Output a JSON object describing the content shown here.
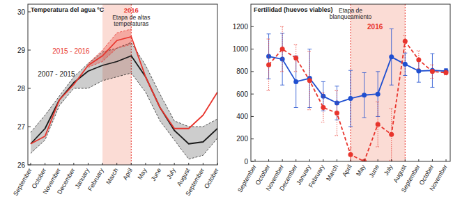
{
  "chart_data": [
    {
      "type": "line",
      "title": "Temperatura del agua ºC",
      "categories": [
        "September",
        "October",
        "November",
        "December",
        "January",
        "February",
        "March",
        "April",
        "May",
        "June",
        "July",
        "August",
        "September",
        "October"
      ],
      "ylim": [
        26,
        30.2
      ],
      "yticks": [
        26,
        27,
        28,
        29,
        30
      ],
      "grid": false,
      "series": [
        {
          "name": "2007 - 2015",
          "color": "#1a1a1a",
          "line_style": "solid",
          "values": [
            26.55,
            26.95,
            27.7,
            28.15,
            28.45,
            28.6,
            28.7,
            28.85,
            28.3,
            27.5,
            26.9,
            26.55,
            26.6,
            26.95
          ],
          "upper": [
            26.85,
            27.3,
            27.8,
            28.3,
            28.65,
            28.95,
            29.05,
            29.2,
            28.6,
            27.85,
            27.15,
            27.0,
            27.0,
            27.2
          ],
          "lower": [
            26.3,
            26.65,
            27.55,
            28.0,
            28.0,
            28.2,
            28.3,
            28.4,
            27.9,
            27.15,
            26.65,
            26.15,
            26.25,
            26.7
          ]
        },
        {
          "name": "2015 - 2016",
          "color": "#e8342c",
          "line_style": "solid",
          "values": [
            26.55,
            26.75,
            27.7,
            28.1,
            28.6,
            28.85,
            29.25,
            29.35,
            28.3,
            27.5,
            26.95,
            26.95,
            27.3,
            27.9
          ],
          "upper": [
            null,
            null,
            null,
            null,
            28.65,
            29.0,
            29.45,
            29.55,
            null,
            null,
            null,
            null,
            null,
            null
          ],
          "lower": [
            null,
            null,
            null,
            null,
            28.55,
            28.7,
            29.05,
            29.15,
            null,
            null,
            null,
            null,
            null,
            null
          ]
        }
      ],
      "annotations": {
        "region": [
          "February",
          "April"
        ],
        "title": "2016",
        "label": [
          "Etapa de altas",
          "temperaturas"
        ]
      }
    },
    {
      "type": "line",
      "title": "Fertilidad (huevos viables)",
      "categories": [
        "September",
        "October",
        "November",
        "December",
        "January",
        "February",
        "March",
        "April",
        "May",
        "June",
        "July",
        "August",
        "September",
        "October",
        "November"
      ],
      "ylim": [
        0,
        1400
      ],
      "yticks": [
        0,
        200,
        400,
        600,
        800,
        1000,
        1200
      ],
      "grid": false,
      "series": [
        {
          "color": "#1f4fd0",
          "line_style": "solid",
          "marker": "circle",
          "values": [
            null,
            935,
            910,
            710,
            740,
            580,
            520,
            560,
            590,
            600,
            930,
            865,
            805,
            810,
            805
          ],
          "errors": [
            null,
            200,
            230,
            230,
            260,
            130,
            150,
            250,
            200,
            200,
            250,
            100,
            100,
            150,
            20
          ]
        },
        {
          "color": "#e8342c",
          "line_style": "dashed",
          "marker": "circle",
          "values": [
            null,
            860,
            1000,
            920,
            720,
            480,
            430,
            60,
            0,
            330,
            240,
            1070,
            905,
            800,
            790
          ],
          "errors": [
            null,
            230,
            200,
            120,
            260,
            130,
            200,
            60,
            0,
            200,
            230,
            50,
            80,
            60,
            20
          ]
        }
      ],
      "annotations": {
        "region": [
          "April",
          "August"
        ],
        "title": "2016",
        "label": [
          "Etapa de",
          "blanqueamiento"
        ]
      }
    }
  ]
}
